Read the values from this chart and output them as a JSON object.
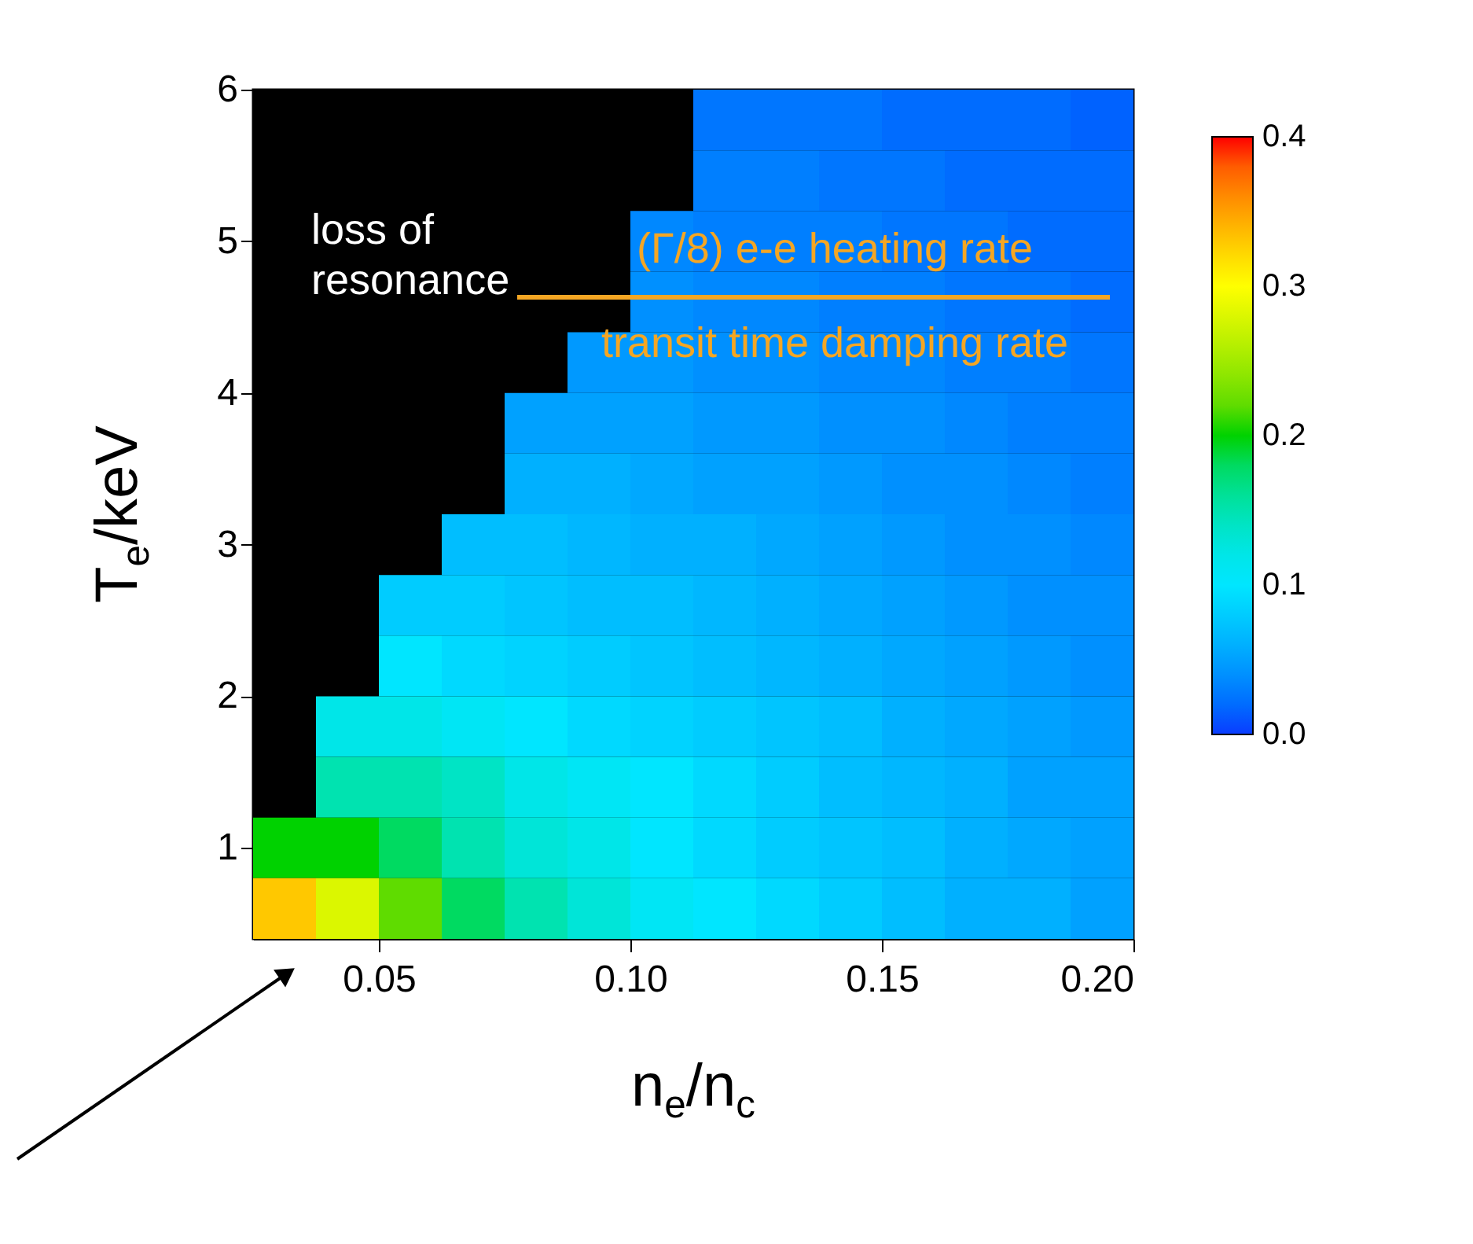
{
  "chart_data": {
    "type": "heatmap",
    "xlabel": "n$_{e}$/n$_{c}$",
    "ylabel": "T$_{e}$/keV",
    "x": [
      0.03125,
      0.04375,
      0.05625,
      0.06875,
      0.08125,
      0.09375,
      0.10625,
      0.11875,
      0.13125,
      0.14375,
      0.15625,
      0.16875,
      0.18125,
      0.19375
    ],
    "y": [
      5.8,
      5.4,
      5.0,
      4.6,
      4.2,
      3.8,
      3.4,
      3.0,
      2.6,
      2.2,
      1.8,
      1.4,
      1.0,
      0.6
    ],
    "xlim": [
      0.025,
      0.2
    ],
    "xticks": [
      0.05,
      {
        "value": 0.1,
        "label": "0.10"
      },
      0.15,
      {
        "value": 0.2,
        "label": "0.20"
      }
    ],
    "ylim": [
      0.4,
      6
    ],
    "yticks": [
      1,
      2,
      3,
      4,
      5,
      6
    ],
    "clim": [
      0,
      0.4
    ],
    "cticks": [
      {
        "value": 0,
        "label": "0.0"
      },
      0.1,
      0.2,
      0.3,
      0.4
    ],
    "cells": [
      [
        null,
        null,
        null,
        null,
        null,
        null,
        null,
        0.025,
        0.025,
        0.025,
        0.02,
        0.02,
        0.02,
        0.015
      ],
      [
        null,
        null,
        null,
        null,
        null,
        null,
        null,
        0.03,
        0.03,
        0.025,
        0.025,
        0.02,
        0.02,
        0.02
      ],
      [
        null,
        null,
        null,
        null,
        null,
        null,
        0.035,
        0.03,
        0.03,
        0.03,
        0.025,
        0.025,
        0.02,
        0.02
      ],
      [
        null,
        null,
        null,
        null,
        null,
        null,
        0.04,
        0.035,
        0.035,
        0.03,
        0.03,
        0.025,
        0.025,
        0.02
      ],
      [
        null,
        null,
        null,
        null,
        null,
        0.045,
        0.045,
        0.04,
        0.04,
        0.035,
        0.035,
        0.03,
        0.03,
        0.025
      ],
      [
        null,
        null,
        null,
        null,
        0.05,
        0.05,
        0.05,
        0.045,
        0.045,
        0.04,
        0.04,
        0.035,
        0.03,
        0.03
      ],
      [
        null,
        null,
        null,
        null,
        0.06,
        0.06,
        0.055,
        0.05,
        0.05,
        0.045,
        0.04,
        0.04,
        0.035,
        0.03
      ],
      [
        null,
        null,
        null,
        0.07,
        0.07,
        0.065,
        0.06,
        0.06,
        0.055,
        0.05,
        0.045,
        0.04,
        0.04,
        0.035
      ],
      [
        null,
        null,
        0.08,
        0.08,
        0.075,
        0.07,
        0.07,
        0.065,
        0.06,
        0.055,
        0.05,
        0.045,
        0.04,
        0.04
      ],
      [
        null,
        null,
        0.1,
        0.09,
        0.085,
        0.08,
        0.075,
        0.07,
        0.065,
        0.06,
        0.055,
        0.05,
        0.045,
        0.04
      ],
      [
        null,
        0.12,
        0.12,
        0.11,
        0.1,
        0.09,
        0.085,
        0.08,
        0.075,
        0.07,
        0.06,
        0.055,
        0.05,
        0.045
      ],
      [
        null,
        0.15,
        0.15,
        0.14,
        0.12,
        0.11,
        0.1,
        0.09,
        0.08,
        0.07,
        0.065,
        0.06,
        0.05,
        0.05
      ],
      [
        0.2,
        0.2,
        0.18,
        0.15,
        0.13,
        0.12,
        0.1,
        0.09,
        0.08,
        0.075,
        0.07,
        0.06,
        0.055,
        0.05
      ],
      [
        0.33,
        0.28,
        0.22,
        0.18,
        0.15,
        0.13,
        0.11,
        0.1,
        0.09,
        0.08,
        0.07,
        0.06,
        0.06,
        0.05
      ]
    ],
    "annotations": [
      "loss of resonance",
      "(Γ/8) e-e heating rate",
      "transit time damping rate"
    ]
  }
}
